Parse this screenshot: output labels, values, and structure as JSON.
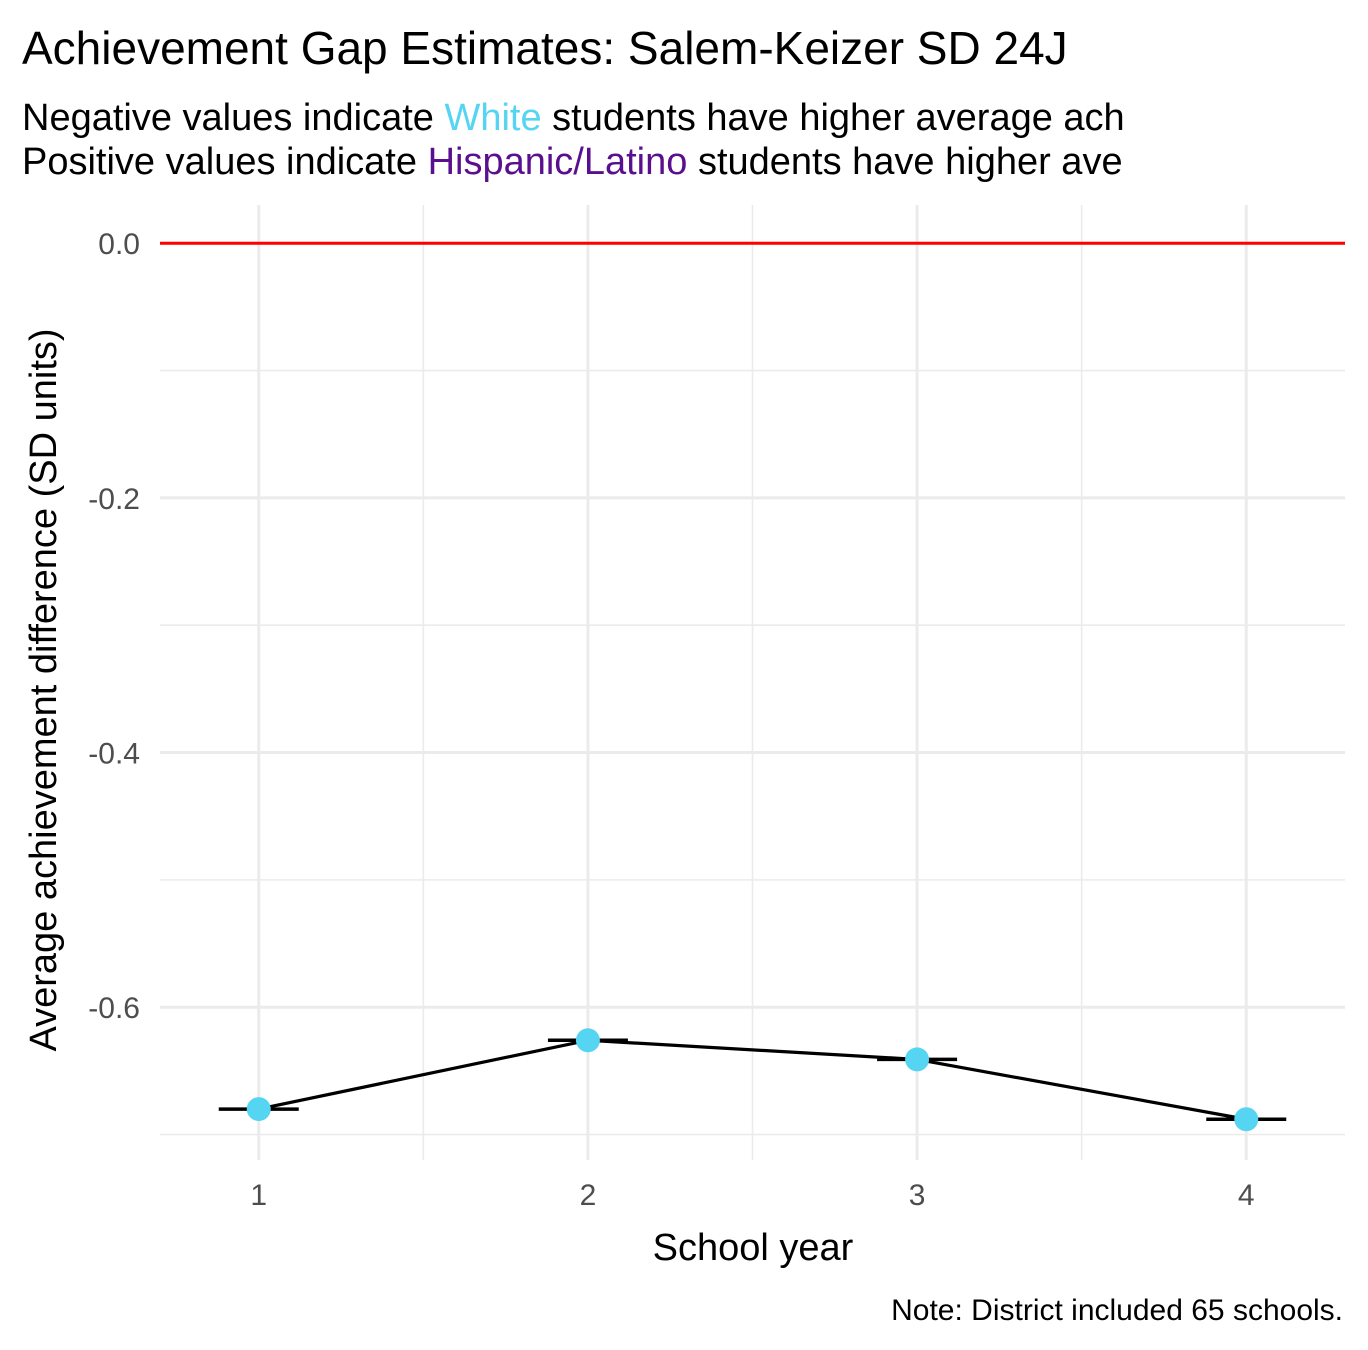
{
  "chart_data": {
    "type": "line",
    "title": "Achievement Gap Estimates: Salem-Keizer SD 24J",
    "subtitle": {
      "line1": {
        "prefix": "Negative values indicate ",
        "group": "White",
        "suffix": " students have higher average ach"
      },
      "line2": {
        "prefix": "Positive values indicate ",
        "group": "Hispanic/Latino",
        "suffix": " students have higher ave"
      }
    },
    "xlabel": "School year",
    "ylabel": "Average achievement difference (SD units)",
    "caption": "Note: District included 65 schools.",
    "x": [
      1,
      2,
      3,
      4
    ],
    "x_tick_labels": [
      "1",
      "2",
      "3",
      "4"
    ],
    "xlim": [
      0.7,
      4.3
    ],
    "y_ticks": [
      0.0,
      -0.2,
      -0.4,
      -0.6
    ],
    "y_tick_labels": [
      "0.0",
      "-0.2",
      "-0.4",
      "-0.6"
    ],
    "ylim": [
      -0.72,
      0.03
    ],
    "series": [
      {
        "values": [
          -0.68,
          -0.626,
          -0.641,
          -0.688
        ]
      }
    ],
    "reference_line": {
      "y": 0,
      "color": "#ff0000"
    },
    "colors": {
      "white_group": "#56d5f2",
      "hispanic_group": "#5a0f8f",
      "point": "#56d5f2",
      "line": "#000000",
      "grid": "#ebebeb"
    },
    "grid": true,
    "legend": "none"
  }
}
